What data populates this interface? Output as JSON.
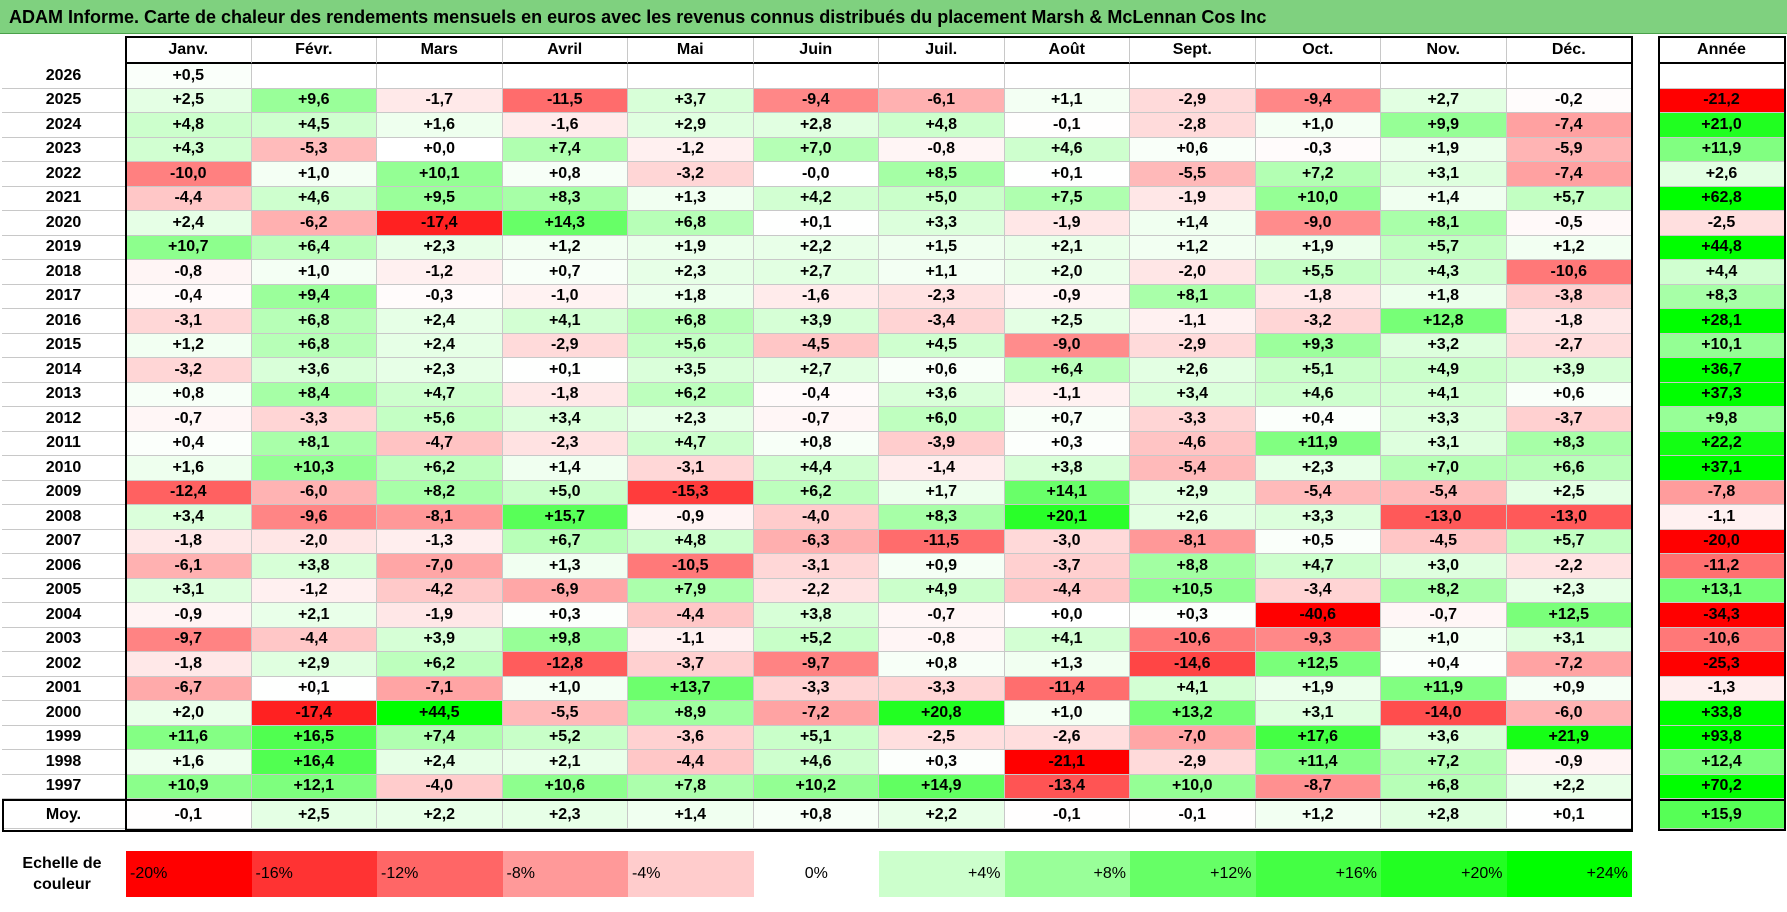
{
  "title": "ADAM Informe. Carte de chaleur des rendements mensuels en euros avec les revenus connus distribués du placement Marsh & McLennan Cos Inc",
  "chart_data": {
    "type": "heatmap",
    "title": "ADAM Informe. Carte de chaleur des rendements mensuels en euros avec les revenus connus distribués du placement Marsh & McLennan Cos Inc",
    "months": [
      "Janv.",
      "Févr.",
      "Mars",
      "Avril",
      "Mai",
      "Juin",
      "Juil.",
      "Août",
      "Sept.",
      "Oct.",
      "Nov.",
      "Déc."
    ],
    "annual_header": "Année",
    "rows": [
      {
        "year": "2026",
        "values": [
          "+0,5",
          "",
          "",
          "",
          "",
          "",
          "",
          "",
          "",
          "",
          "",
          ""
        ],
        "annual": ""
      },
      {
        "year": "2025",
        "values": [
          "+2,5",
          "+9,6",
          "-1,7",
          "-11,5",
          "+3,7",
          "-9,4",
          "-6,1",
          "+1,1",
          "-2,9",
          "-9,4",
          "+2,7",
          "-0,2"
        ],
        "annual": "-21,2"
      },
      {
        "year": "2024",
        "values": [
          "+4,8",
          "+4,5",
          "+1,6",
          "-1,6",
          "+2,9",
          "+2,8",
          "+4,8",
          "-0,1",
          "-2,8",
          "+1,0",
          "+9,9",
          "-7,4"
        ],
        "annual": "+21,0"
      },
      {
        "year": "2023",
        "values": [
          "+4,3",
          "-5,3",
          "+0,0",
          "+7,4",
          "-1,2",
          "+7,0",
          "-0,8",
          "+4,6",
          "+0,6",
          "-0,3",
          "+1,9",
          "-5,9"
        ],
        "annual": "+11,9"
      },
      {
        "year": "2022",
        "values": [
          "-10,0",
          "+1,0",
          "+10,1",
          "+0,8",
          "-3,2",
          "-0,0",
          "+8,5",
          "+0,1",
          "-5,5",
          "+7,2",
          "+3,1",
          "-7,4"
        ],
        "annual": "+2,6"
      },
      {
        "year": "2021",
        "values": [
          "-4,4",
          "+4,6",
          "+9,5",
          "+8,3",
          "+1,3",
          "+4,2",
          "+5,0",
          "+7,5",
          "-1,9",
          "+10,0",
          "+1,4",
          "+5,7"
        ],
        "annual": "+62,8"
      },
      {
        "year": "2020",
        "values": [
          "+2,4",
          "-6,2",
          "-17,4",
          "+14,3",
          "+6,8",
          "+0,1",
          "+3,3",
          "-1,9",
          "+1,4",
          "-9,0",
          "+8,1",
          "-0,5"
        ],
        "annual": "-2,5"
      },
      {
        "year": "2019",
        "values": [
          "+10,7",
          "+6,4",
          "+2,3",
          "+1,2",
          "+1,9",
          "+2,2",
          "+1,5",
          "+2,1",
          "+1,2",
          "+1,9",
          "+5,7",
          "+1,2"
        ],
        "annual": "+44,8"
      },
      {
        "year": "2018",
        "values": [
          "-0,8",
          "+1,0",
          "-1,2",
          "+0,7",
          "+2,3",
          "+2,7",
          "+1,1",
          "+2,0",
          "-2,0",
          "+5,5",
          "+4,3",
          "-10,6"
        ],
        "annual": "+4,4"
      },
      {
        "year": "2017",
        "values": [
          "-0,4",
          "+9,4",
          "-0,3",
          "-1,0",
          "+1,8",
          "-1,6",
          "-2,3",
          "-0,9",
          "+8,1",
          "-1,8",
          "+1,8",
          "-3,8"
        ],
        "annual": "+8,3"
      },
      {
        "year": "2016",
        "values": [
          "-3,1",
          "+6,8",
          "+2,4",
          "+4,1",
          "+6,8",
          "+3,9",
          "-3,4",
          "+2,5",
          "-1,1",
          "-3,2",
          "+12,8",
          "-1,8"
        ],
        "annual": "+28,1"
      },
      {
        "year": "2015",
        "values": [
          "+1,2",
          "+6,8",
          "+2,4",
          "-2,9",
          "+5,6",
          "-4,5",
          "+4,5",
          "-9,0",
          "-2,9",
          "+9,3",
          "+3,2",
          "-2,7"
        ],
        "annual": "+10,1"
      },
      {
        "year": "2014",
        "values": [
          "-3,2",
          "+3,6",
          "+2,3",
          "+0,1",
          "+3,5",
          "+2,7",
          "+0,6",
          "+6,4",
          "+2,6",
          "+5,1",
          "+4,9",
          "+3,9"
        ],
        "annual": "+36,7"
      },
      {
        "year": "2013",
        "values": [
          "+0,8",
          "+8,4",
          "+4,7",
          "-1,8",
          "+6,2",
          "-0,4",
          "+3,6",
          "-1,1",
          "+3,4",
          "+4,6",
          "+4,1",
          "+0,6"
        ],
        "annual": "+37,3"
      },
      {
        "year": "2012",
        "values": [
          "-0,7",
          "-3,3",
          "+5,6",
          "+3,4",
          "+2,3",
          "-0,7",
          "+6,0",
          "+0,7",
          "-3,3",
          "+0,4",
          "+3,3",
          "-3,7"
        ],
        "annual": "+9,8"
      },
      {
        "year": "2011",
        "values": [
          "+0,4",
          "+8,1",
          "-4,7",
          "-2,3",
          "+4,7",
          "+0,8",
          "-3,9",
          "+0,3",
          "-4,6",
          "+11,9",
          "+3,1",
          "+8,3"
        ],
        "annual": "+22,2"
      },
      {
        "year": "2010",
        "values": [
          "+1,6",
          "+10,3",
          "+6,2",
          "+1,4",
          "-3,1",
          "+4,4",
          "-1,4",
          "+3,8",
          "-5,4",
          "+2,3",
          "+7,0",
          "+6,6"
        ],
        "annual": "+37,1"
      },
      {
        "year": "2009",
        "values": [
          "-12,4",
          "-6,0",
          "+8,2",
          "+5,0",
          "-15,3",
          "+6,2",
          "+1,7",
          "+14,1",
          "+2,9",
          "-5,4",
          "-5,4",
          "+2,5"
        ],
        "annual": "-7,8"
      },
      {
        "year": "2008",
        "values": [
          "+3,4",
          "-9,6",
          "-8,1",
          "+15,7",
          "-0,9",
          "-4,0",
          "+8,3",
          "+20,1",
          "+2,6",
          "+3,3",
          "-13,0",
          "-13,0"
        ],
        "annual": "-1,1"
      },
      {
        "year": "2007",
        "values": [
          "-1,8",
          "-2,0",
          "-1,3",
          "+6,7",
          "+4,8",
          "-6,3",
          "-11,5",
          "-3,0",
          "-8,1",
          "+0,5",
          "-4,5",
          "+5,7"
        ],
        "annual": "-20,0"
      },
      {
        "year": "2006",
        "values": [
          "-6,1",
          "+3,8",
          "-7,0",
          "+1,3",
          "-10,5",
          "-3,1",
          "+0,9",
          "-3,7",
          "+8,8",
          "+4,7",
          "+3,0",
          "-2,2"
        ],
        "annual": "-11,2"
      },
      {
        "year": "2005",
        "values": [
          "+3,1",
          "-1,2",
          "-4,2",
          "-6,9",
          "+7,9",
          "-2,2",
          "+4,9",
          "-4,4",
          "+10,5",
          "-3,4",
          "+8,2",
          "+2,3"
        ],
        "annual": "+13,1"
      },
      {
        "year": "2004",
        "values": [
          "-0,9",
          "+2,1",
          "-1,9",
          "+0,3",
          "-4,4",
          "+3,8",
          "-0,7",
          "+0,0",
          "+0,3",
          "-40,6",
          "-0,7",
          "+12,5"
        ],
        "annual": "-34,3"
      },
      {
        "year": "2003",
        "values": [
          "-9,7",
          "-4,4",
          "+3,9",
          "+9,8",
          "-1,1",
          "+5,2",
          "-0,8",
          "+4,1",
          "-10,6",
          "-9,3",
          "+1,0",
          "+3,1"
        ],
        "annual": "-10,6"
      },
      {
        "year": "2002",
        "values": [
          "-1,8",
          "+2,9",
          "+6,2",
          "-12,8",
          "-3,7",
          "-9,7",
          "+0,8",
          "+1,3",
          "-14,6",
          "+12,5",
          "+0,4",
          "-7,2"
        ],
        "annual": "-25,3"
      },
      {
        "year": "2001",
        "values": [
          "-6,7",
          "+0,1",
          "-7,1",
          "+1,0",
          "+13,7",
          "-3,3",
          "-3,3",
          "-11,4",
          "+4,1",
          "+1,9",
          "+11,9",
          "+0,9"
        ],
        "annual": "-1,3"
      },
      {
        "year": "2000",
        "values": [
          "+2,0",
          "-17,4",
          "+44,5",
          "-5,5",
          "+8,9",
          "-7,2",
          "+20,8",
          "+1,0",
          "+13,2",
          "+3,1",
          "-14,0",
          "-6,0"
        ],
        "annual": "+33,8"
      },
      {
        "year": "1999",
        "values": [
          "+11,6",
          "+16,5",
          "+7,4",
          "+5,2",
          "-3,6",
          "+5,1",
          "-2,5",
          "-2,6",
          "-7,0",
          "+17,6",
          "+3,6",
          "+21,9"
        ],
        "annual": "+93,8"
      },
      {
        "year": "1998",
        "values": [
          "+1,6",
          "+16,4",
          "+2,4",
          "+2,1",
          "-4,4",
          "+4,6",
          "+0,3",
          "-21,1",
          "-2,9",
          "+11,4",
          "+7,2",
          "-0,9"
        ],
        "annual": "+12,4"
      },
      {
        "year": "1997",
        "values": [
          "+10,9",
          "+12,1",
          "-4,0",
          "+10,6",
          "+7,8",
          "+10,2",
          "+14,9",
          "-13,4",
          "+10,0",
          "-8,7",
          "+6,8",
          "+2,2"
        ],
        "annual": "+70,2"
      }
    ],
    "average": {
      "label": "Moy.",
      "values": [
        "-0,1",
        "+2,5",
        "+2,2",
        "+2,3",
        "+1,4",
        "+0,8",
        "+2,2",
        "-0,1",
        "-0,1",
        "+1,2",
        "+2,8",
        "+0,1"
      ],
      "annual": "+15,9"
    },
    "scale": {
      "label": "Echelle de couleur",
      "steps": [
        {
          "label": "-20%",
          "color": "#ff0000"
        },
        {
          "label": "-16%",
          "color": "#ff3333"
        },
        {
          "label": "-12%",
          "color": "#ff6666"
        },
        {
          "label": "-8%",
          "color": "#ff9999"
        },
        {
          "label": "-4%",
          "color": "#ffcccc"
        },
        {
          "label": "0%",
          "color": "#ffffff"
        },
        {
          "label": "+4%",
          "color": "#ccffcc"
        },
        {
          "label": "+8%",
          "color": "#99ff99"
        },
        {
          "label": "+12%",
          "color": "#66ff66"
        },
        {
          "label": "+16%",
          "color": "#44ff44"
        },
        {
          "label": "+20%",
          "color": "#22ff22"
        },
        {
          "label": "+24%",
          "color": "#00ff00"
        }
      ]
    }
  }
}
